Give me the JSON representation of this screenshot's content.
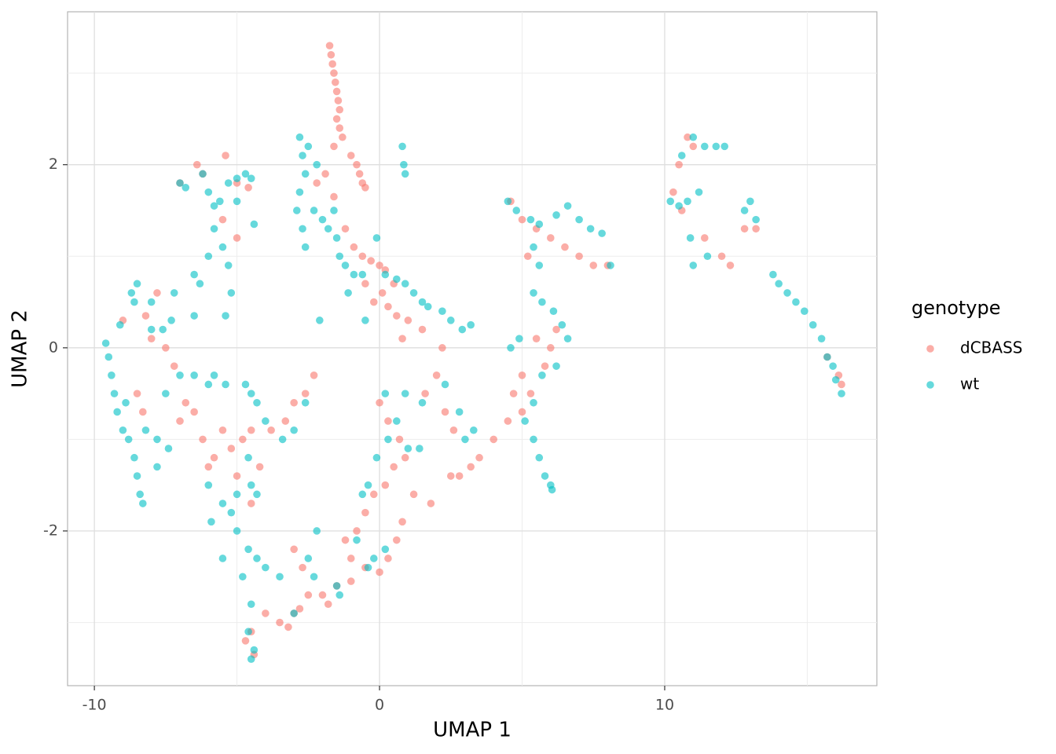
{
  "chart_data": {
    "type": "scatter",
    "xlabel": "UMAP 1",
    "ylabel": "UMAP 2",
    "legend_title": "genotype",
    "legend_position": "right",
    "xlim": [
      -10.94,
      17.44
    ],
    "ylim": [
      -3.69,
      3.67
    ],
    "xticks": [
      -10,
      0,
      10
    ],
    "yticks": [
      -2,
      0,
      2
    ],
    "minor_xticks": [
      -5,
      5,
      15
    ],
    "minor_yticks": [
      -3,
      -1,
      1,
      3
    ],
    "grid": true,
    "series": [
      {
        "name": "dCBASS",
        "color": "#F8766D",
        "x": [
          -1.75,
          -1.7,
          -1.65,
          -1.6,
          -1.55,
          -1.5,
          -1.45,
          -1.4,
          -1.5,
          -1.4,
          -1.3,
          -1.6,
          -1.0,
          -0.8,
          -0.7,
          -0.6,
          -0.5,
          -1.9,
          -2.2,
          -1.6,
          -1.2,
          -0.9,
          -0.6,
          -0.3,
          0,
          0.2,
          0.5,
          0.1,
          0.3,
          0.6,
          -0.5,
          -0.2,
          1.0,
          1.5,
          0.8,
          2.2,
          2.0,
          1.6,
          2.3,
          2.6,
          0,
          0.3,
          0.7,
          0.9,
          0.5,
          0.2,
          -0.2,
          -0.5,
          -0.8,
          -1.2,
          -1.0,
          -0.5,
          0,
          0.3,
          0.6,
          0.8,
          1.2,
          1.8,
          2.5,
          2.8,
          3.2,
          3.5,
          4.0,
          4.5,
          5.0,
          5.3,
          -1.5,
          -2.0,
          -2.5,
          -3.0,
          -3.5,
          -4.0,
          -4.5,
          -4.7,
          -4.4,
          -3.2,
          -2.8,
          -1.8,
          -1.0,
          -2.7,
          -3.0,
          -5.5,
          -5.2,
          -4.8,
          -4.5,
          -5.8,
          -6.2,
          -6.5,
          -4.2,
          -3.8,
          -3.3,
          -3.0,
          -2.6,
          -2.3,
          -5.0,
          -4.5,
          -6.0,
          -8.5,
          -8.3,
          -8.0,
          -7.5,
          -7.2,
          -7.8,
          -7.0,
          -6.8,
          -9.0,
          -8.2,
          -6.4,
          -6.2,
          -5.4,
          -5.0,
          -5.5,
          -5.0,
          -4.6,
          -7.0,
          4.6,
          5.0,
          5.5,
          6.0,
          6.5,
          7.0,
          7.5,
          8.0,
          5.2,
          5.5,
          6.0,
          5.0,
          4.7,
          5.8,
          6.2,
          10.3,
          10.6,
          10.8,
          10.5,
          11.0,
          11.4,
          12.0,
          12.3,
          12.8,
          13.2,
          16.1,
          16.2,
          15.7
        ],
        "y": [
          3.3,
          3.2,
          3.1,
          3.0,
          2.9,
          2.8,
          2.7,
          2.6,
          2.5,
          2.4,
          2.3,
          2.2,
          2.1,
          2.0,
          1.9,
          1.8,
          1.75,
          1.9,
          1.8,
          1.65,
          1.3,
          1.1,
          1.0,
          0.95,
          0.9,
          0.85,
          0.7,
          0.6,
          0.45,
          0.35,
          0.7,
          0.5,
          0.3,
          0.2,
          0.1,
          0.0,
          -0.3,
          -0.5,
          -0.7,
          -0.9,
          -0.6,
          -0.8,
          -1.0,
          -1.2,
          -1.3,
          -1.5,
          -1.6,
          -1.8,
          -2.0,
          -2.1,
          -2.3,
          -2.4,
          -2.45,
          -2.3,
          -2.1,
          -1.9,
          -1.6,
          -1.7,
          -1.4,
          -1.4,
          -1.3,
          -1.2,
          -1.0,
          -0.8,
          -0.7,
          -0.5,
          -2.6,
          -2.7,
          -2.7,
          -2.9,
          -3.0,
          -2.9,
          -3.1,
          -3.2,
          -3.35,
          -3.05,
          -2.85,
          -2.8,
          -2.55,
          -2.4,
          -2.2,
          -0.9,
          -1.1,
          -1.0,
          -0.9,
          -1.2,
          -1.0,
          -0.7,
          -1.3,
          -0.9,
          -0.8,
          -0.6,
          -0.5,
          -0.3,
          -1.4,
          -1.7,
          -1.3,
          -0.5,
          -0.7,
          0.1,
          0.0,
          -0.2,
          0.6,
          -0.8,
          -0.6,
          0.3,
          0.35,
          2.0,
          1.9,
          2.1,
          1.8,
          1.4,
          1.2,
          1.75,
          1.8,
          1.6,
          1.4,
          1.3,
          1.2,
          1.1,
          1.0,
          0.9,
          0.9,
          1.0,
          0.1,
          0.0,
          -0.3,
          -0.5,
          -0.2,
          0.2,
          1.7,
          1.5,
          2.3,
          2.0,
          2.2,
          1.2,
          1.0,
          0.9,
          1.3,
          1.3,
          -0.3,
          -0.4,
          -0.1
        ]
      },
      {
        "name": "wt",
        "color": "#00BFC4",
        "x": [
          -9.6,
          -9.5,
          -9.4,
          -9.3,
          -9.2,
          -9.0,
          -8.8,
          -8.6,
          -8.5,
          -8.4,
          -8.3,
          -8.7,
          -8.5,
          -8.6,
          -8.0,
          -7.6,
          -7.3,
          -7.0,
          -6.5,
          -6.0,
          -7.5,
          -7.8,
          -7.4,
          -7.8,
          -8.2,
          -9.1,
          -8.9,
          -8.0,
          -7.2,
          -6.5,
          -7.0,
          -6.8,
          -6.2,
          -6.0,
          -5.8,
          -5.6,
          -5.3,
          -5.0,
          -4.7,
          -4.5,
          -5.0,
          -5.8,
          -5.5,
          -6.0,
          -5.3,
          -6.3,
          -4.4,
          -5.2,
          -5.4,
          -6.5,
          -2.8,
          -2.7,
          -2.6,
          -2.8,
          -2.9,
          -2.7,
          -2.6,
          -2.3,
          -2.0,
          -1.8,
          -1.5,
          -1.6,
          -1.4,
          -1.2,
          -0.9,
          -0.6,
          -2.5,
          -2.2,
          0.8,
          0.85,
          0.9,
          -0.1,
          0.2,
          0.6,
          0.9,
          1.2,
          1.5,
          1.7,
          2.2,
          2.5,
          2.9,
          3.2,
          -1.1,
          -0.5,
          -2.1,
          4.5,
          4.8,
          5.3,
          5.6,
          6.2,
          6.6,
          7.0,
          7.4,
          7.8,
          8.1,
          5.4,
          5.6,
          5.4,
          5.7,
          6.1,
          6.4,
          6.6,
          6.2,
          5.7,
          5.4,
          5.1,
          4.6,
          4.9,
          5.4,
          5.6,
          5.8,
          6.0,
          6.05,
          10.2,
          10.5,
          10.8,
          11.2,
          10.6,
          11.0,
          11.4,
          11.8,
          12.1,
          10.9,
          11.0,
          11.5,
          12.8,
          13.0,
          13.2,
          13.8,
          14.0,
          14.3,
          14.6,
          14.9,
          15.2,
          15.5,
          15.7,
          15.9,
          16.0,
          16.2,
          -4.7,
          -4.5,
          -4.3,
          -4.0,
          -4.6,
          -4.5,
          -4.3,
          -5.0,
          -5.2,
          -5.0,
          -4.6,
          -4.3,
          -4.0,
          -4.8,
          -4.5,
          -4.6,
          -4.4,
          -4.5,
          -5.5,
          -3.5,
          -3.0,
          -2.5,
          -2.3,
          -2.2,
          -1.5,
          -1.4,
          -0.4,
          -0.2,
          0.2,
          -0.4,
          -0.6,
          -0.1,
          0.3,
          0.6,
          0.9,
          0.2,
          1.4,
          -3.4,
          -3.0,
          -2.6,
          -5.8,
          -5.4,
          -6.0,
          -5.5,
          -5.9,
          -0.8,
          1.5,
          2.3,
          2.8,
          3.0,
          3.3,
          1.0
        ],
        "y": [
          0.05,
          -0.1,
          -0.3,
          -0.5,
          -0.7,
          -0.9,
          -1.0,
          -1.2,
          -1.4,
          -1.6,
          -1.7,
          0.6,
          0.7,
          0.5,
          0.2,
          0.2,
          0.3,
          -0.3,
          -0.3,
          -0.4,
          -0.5,
          -1.0,
          -1.1,
          -1.3,
          -0.9,
          0.25,
          -0.6,
          0.5,
          0.6,
          0.8,
          1.8,
          1.75,
          1.9,
          1.7,
          1.55,
          1.6,
          1.8,
          1.85,
          1.9,
          1.85,
          1.6,
          1.3,
          1.1,
          1.0,
          0.9,
          0.7,
          1.35,
          0.6,
          0.35,
          0.35,
          2.3,
          2.1,
          1.9,
          1.7,
          1.5,
          1.3,
          1.1,
          1.5,
          1.4,
          1.3,
          1.2,
          1.5,
          1.0,
          0.9,
          0.8,
          0.8,
          2.2,
          2.0,
          2.2,
          2.0,
          1.9,
          1.2,
          0.8,
          0.75,
          0.7,
          0.6,
          0.5,
          0.45,
          0.4,
          0.3,
          0.2,
          0.25,
          0.6,
          0.3,
          0.3,
          1.6,
          1.5,
          1.4,
          1.35,
          1.45,
          1.55,
          1.4,
          1.3,
          1.25,
          0.9,
          1.1,
          0.9,
          0.6,
          0.5,
          0.4,
          0.25,
          0.1,
          -0.2,
          -0.3,
          -0.6,
          -0.8,
          0.0,
          0.1,
          -1.0,
          -1.2,
          -1.4,
          -1.5,
          -1.55,
          1.6,
          1.55,
          1.6,
          1.7,
          2.1,
          2.3,
          2.2,
          2.2,
          2.2,
          1.2,
          0.9,
          1.0,
          1.5,
          1.6,
          1.4,
          0.8,
          0.7,
          0.6,
          0.5,
          0.4,
          0.25,
          0.1,
          -0.1,
          -0.2,
          -0.35,
          -0.5,
          -0.4,
          -0.5,
          -0.6,
          -0.8,
          -1.2,
          -1.5,
          -1.6,
          -1.6,
          -1.8,
          -2.0,
          -2.2,
          -2.3,
          -2.4,
          -2.5,
          -2.8,
          -3.1,
          -3.3,
          -3.4,
          -2.3,
          -2.5,
          -2.9,
          -2.3,
          -2.5,
          -2.0,
          -2.6,
          -2.7,
          -2.4,
          -2.3,
          -2.2,
          -1.5,
          -1.6,
          -1.2,
          -1.0,
          -0.8,
          -0.5,
          -0.5,
          -1.1,
          -1.0,
          -0.9,
          -0.6,
          -0.3,
          -0.4,
          -1.5,
          -1.7,
          -1.9,
          -2.1,
          -0.6,
          -0.4,
          -0.7,
          -1.0,
          -0.9,
          -1.1
        ]
      }
    ]
  }
}
